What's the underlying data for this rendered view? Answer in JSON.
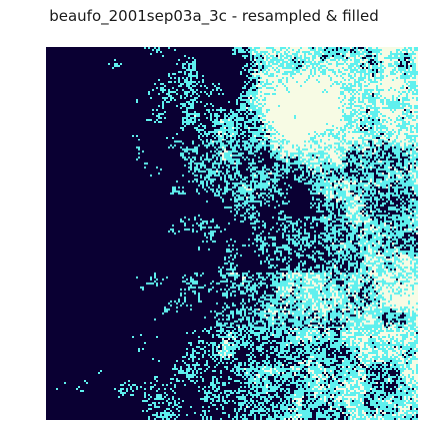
{
  "figure": {
    "title": "beaufo_2001sep03a_3c - resampled & filled"
  },
  "raster": {
    "palette": {
      "water": "#0a0033",
      "low_reflectance": "#5ff0ee",
      "high_reflectance": "#f7fbe4"
    }
  }
}
